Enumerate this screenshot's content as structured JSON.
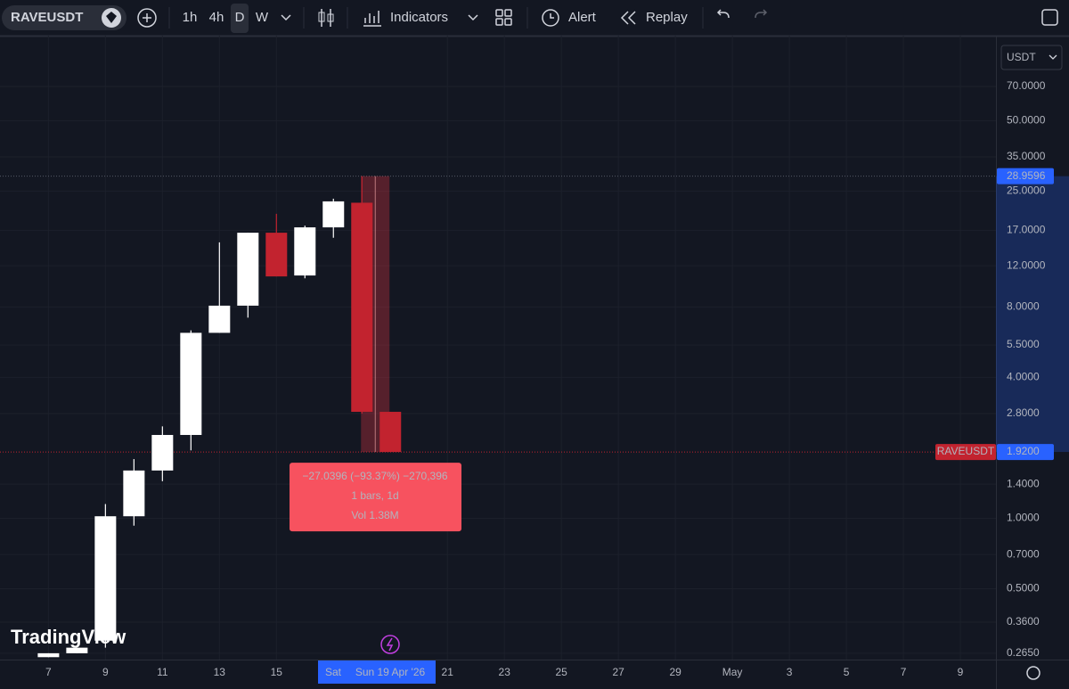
{
  "toolbar": {
    "symbol": "RAVEUSDT",
    "intervals": [
      "1h",
      "4h",
      "D",
      "W"
    ],
    "indicators": "Indicators",
    "alert": "Alert",
    "replay": "Replay"
  },
  "currency": "USDT",
  "logo": "TradingView",
  "chart_data": {
    "type": "candlestick",
    "log_scale": true,
    "up_color": "#ffffff",
    "down_color": "#c2232f",
    "x": [
      7,
      8,
      9,
      10,
      11,
      12,
      13,
      14,
      15,
      16,
      17,
      18,
      19
    ],
    "open": [
      0.255,
      0.265,
      0.3,
      1.02,
      1.6,
      2.27,
      6.2,
      8.1,
      16.6,
      10.9,
      17.5,
      22.3,
      2.85
    ],
    "high": [
      0.265,
      0.28,
      1.15,
      1.79,
      2.47,
      6.35,
      15.1,
      16.6,
      20,
      17.8,
      23.2,
      28.9596,
      2.85
    ],
    "low": [
      0.255,
      0.265,
      0.28,
      0.93,
      1.44,
      1.95,
      6.2,
      7.2,
      10.8,
      10.6,
      15.8,
      2.8,
      1.92
    ],
    "close": [
      0.265,
      0.28,
      1.02,
      1.6,
      2.27,
      6.2,
      8.1,
      16.6,
      10.8,
      17.5,
      22.6,
      2.85,
      1.92
    ],
    "xlim": [
      5.3,
      40.25
    ],
    "xticks": [
      7,
      9,
      11,
      13,
      15,
      21,
      23,
      25,
      27,
      29,
      {
        "value": 31,
        "label": "May"
      },
      {
        "value": 33,
        "label": "3"
      },
      {
        "value": 35,
        "label": "5"
      },
      {
        "value": 37,
        "label": "7"
      },
      {
        "value": 39,
        "label": "9"
      }
    ],
    "ylim": [
      0.249,
      115.4
    ],
    "yticks": [
      {
        "value": 70,
        "label": "70.0000"
      },
      {
        "value": 50,
        "label": "50.0000"
      },
      {
        "value": 35,
        "label": "35.0000"
      },
      {
        "value": 25,
        "label": "25.0000"
      },
      {
        "value": 17,
        "label": "17.0000"
      },
      {
        "value": 12,
        "label": "12.0000"
      },
      {
        "value": 8,
        "label": "8.0000"
      },
      {
        "value": 5.5,
        "label": "5.5000"
      },
      {
        "value": 4,
        "label": "4.0000"
      },
      {
        "value": 2.8,
        "label": "2.8000"
      },
      {
        "value": 1.4,
        "label": "1.4000"
      },
      {
        "value": 1,
        "label": "1.0000"
      },
      {
        "value": 0.7,
        "label": "0.7000"
      },
      {
        "value": 0.5,
        "label": "0.5000"
      },
      {
        "value": 0.36,
        "label": "0.3600"
      },
      {
        "value": 0.265,
        "label": "0.2650"
      }
    ],
    "grid": true,
    "high_marker": 28.9596,
    "last_price": {
      "value": 1.92,
      "label": "1.9200"
    },
    "last_price_symbol": "RAVEUSDT",
    "crosshair_prev_label": "Sat",
    "crosshair_label": "Sun 19 Apr '26",
    "measure": {
      "lines": [
        "−27.0396 (−93.37%) −270,396",
        "1 bars, 1d",
        "Vol 1.38M"
      ]
    }
  }
}
